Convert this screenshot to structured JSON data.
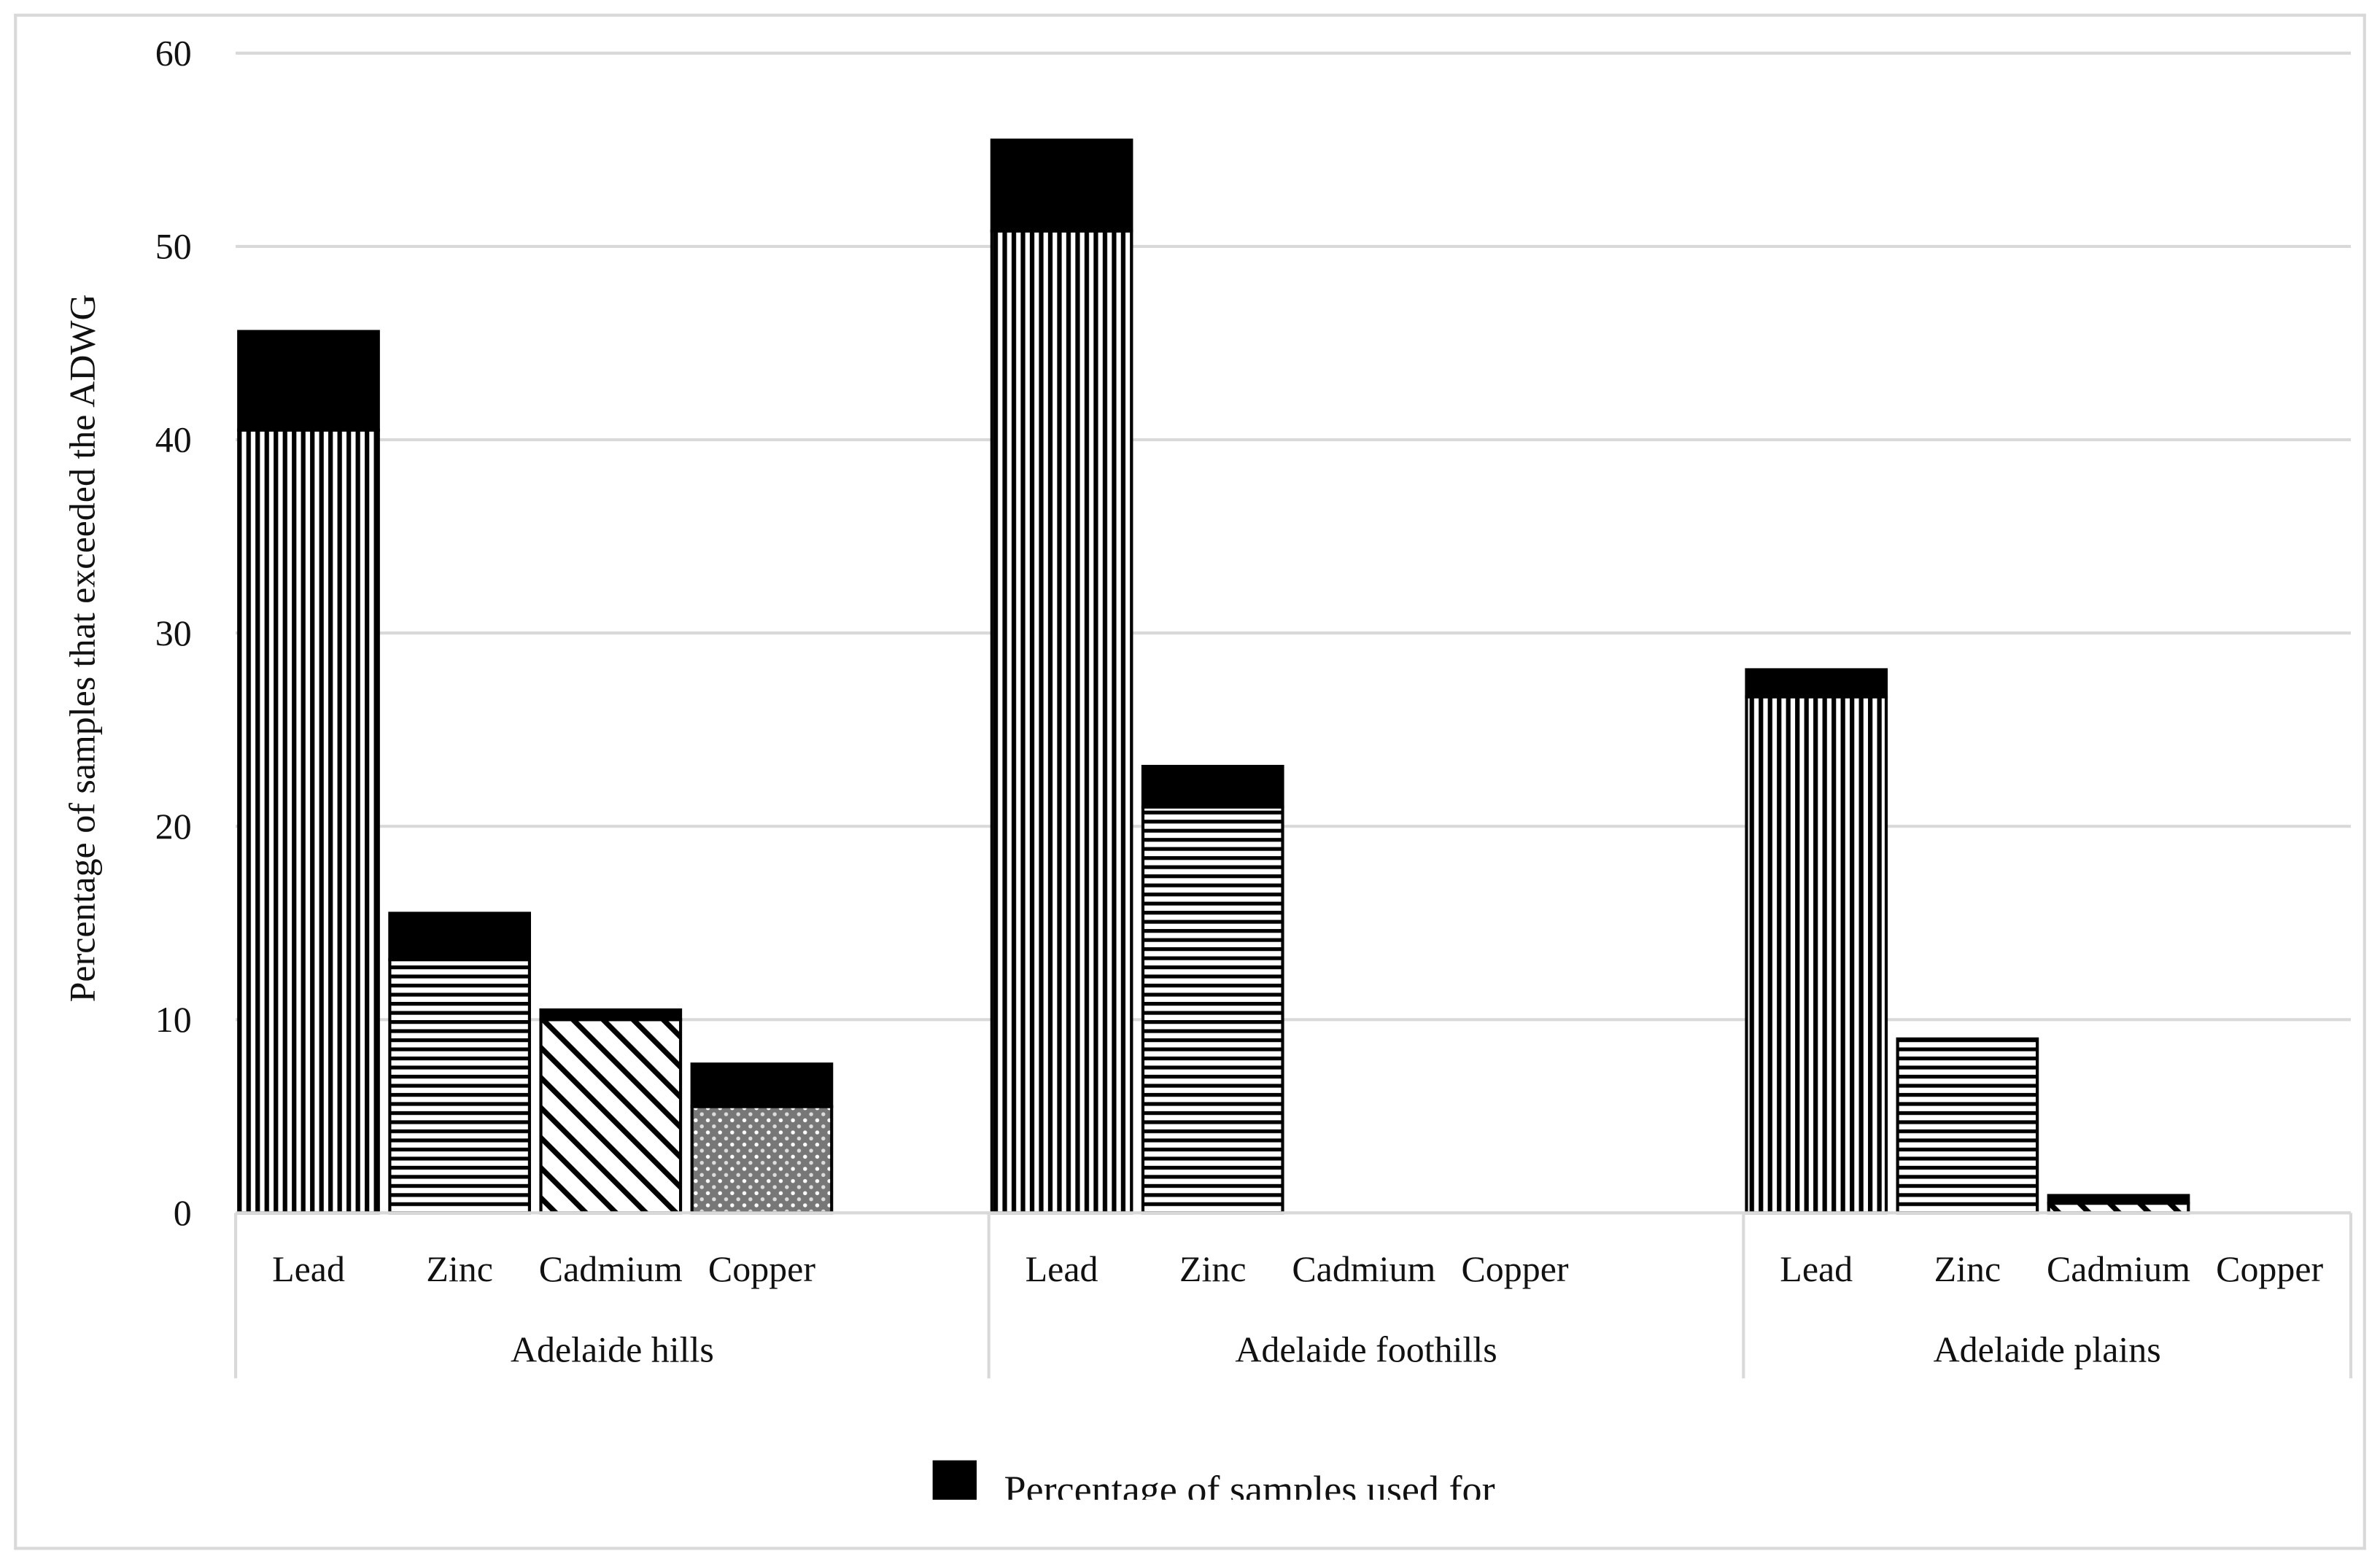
{
  "chart_data": {
    "type": "bar",
    "stacked": true,
    "title": "",
    "xlabel": "",
    "ylabel": "Percentage of samples that exceeded the ADWG",
    "ylim": [
      0,
      60
    ],
    "yticks": [
      "0",
      "10",
      "20",
      "30",
      "40",
      "50",
      "60"
    ],
    "grid": true,
    "legend_position": "bottom",
    "legend": [
      "Percentage of samples used for"
    ],
    "groups": [
      {
        "label": "Adelaide hills",
        "categories": [
          "Lead",
          "Zinc",
          "Cadmium",
          "Copper"
        ],
        "base": [
          40.5,
          13.1,
          10.0,
          5.5
        ],
        "black": [
          5.1,
          2.4,
          0.5,
          2.2
        ]
      },
      {
        "label": "Adelaide foothills",
        "categories": [
          "Lead",
          "Zinc",
          "Cadmium",
          "Copper"
        ],
        "base": [
          50.8,
          21.0,
          0,
          0
        ],
        "black": [
          4.7,
          2.1,
          0,
          0
        ]
      },
      {
        "label": "Adelaide plains",
        "categories": [
          "Lead",
          "Zinc",
          "Cadmium",
          "Copper"
        ],
        "base": [
          26.7,
          9.0,
          0.5,
          0
        ],
        "black": [
          1.4,
          0,
          0.4,
          0
        ]
      }
    ],
    "patterns": {
      "Lead": "vertical-lines",
      "Zinc": "horizontal-lines",
      "Cadmium": "diagonal-lines",
      "Copper": "dotted-gray"
    },
    "colors": {
      "black_series": "#000000",
      "grid": "#d9d9d9",
      "border": "#d9d9d9"
    }
  }
}
